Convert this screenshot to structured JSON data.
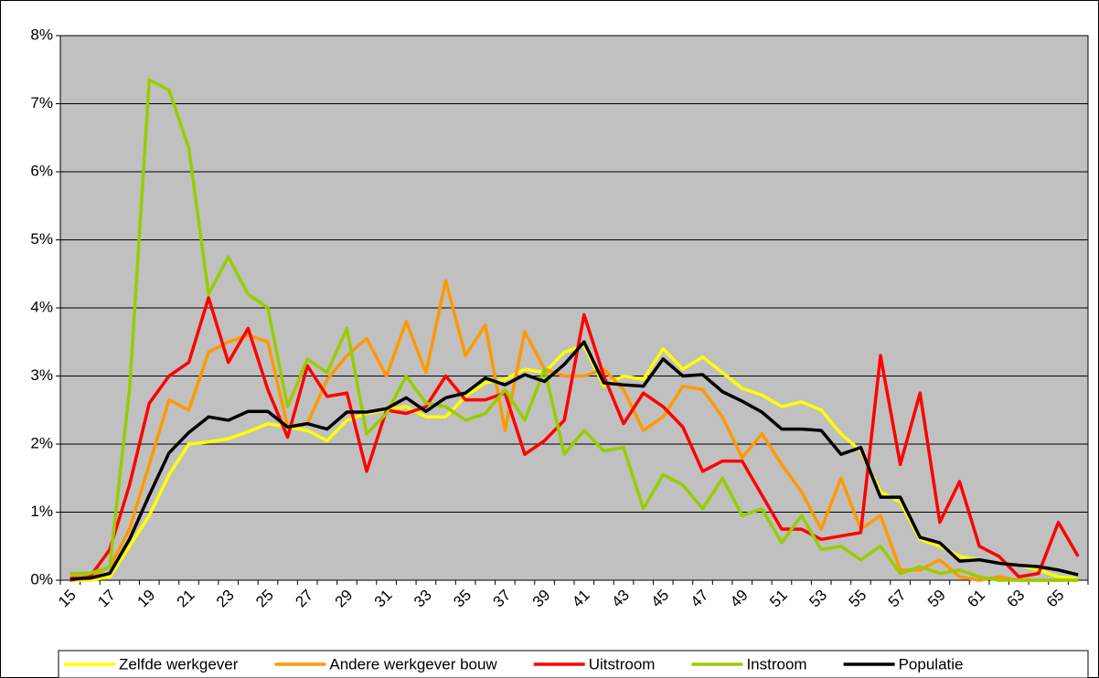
{
  "chart_data": {
    "type": "line",
    "categories": [
      "15",
      null,
      "17",
      null,
      "19",
      null,
      "21",
      null,
      "23",
      null,
      "25",
      null,
      "27",
      null,
      "29",
      null,
      "31",
      null,
      "33",
      null,
      "35",
      null,
      "37",
      null,
      "39",
      null,
      "41",
      null,
      "43",
      null,
      "45",
      null,
      "47",
      null,
      "49",
      null,
      "51",
      null,
      "53",
      null,
      "55",
      null,
      "57",
      null,
      "59",
      null,
      "61",
      null,
      "63",
      null,
      "65",
      null
    ],
    "series": [
      {
        "name": "Zelfde werkgever",
        "color": "#ffff00",
        "values": [
          0,
          0,
          0.05,
          0.5,
          0.95,
          1.55,
          2.0,
          2.03,
          2.08,
          2.18,
          2.3,
          2.25,
          2.2,
          2.05,
          2.35,
          2.45,
          2.5,
          2.55,
          2.4,
          2.4,
          2.7,
          2.9,
          2.95,
          3.1,
          3.05,
          3.35,
          3.45,
          2.85,
          3.0,
          2.95,
          3.4,
          3.1,
          3.28,
          3.05,
          2.82,
          2.72,
          2.55,
          2.62,
          2.5,
          2.15,
          1.9,
          1.3,
          1.15,
          0.6,
          0.5,
          0.35,
          0.3,
          0.25,
          0.22,
          0.15,
          0.05,
          0.02
        ]
      },
      {
        "name": "Andere werkgever bouw",
        "color": "#ff9900",
        "values": [
          0.05,
          0.05,
          0.2,
          0.75,
          1.7,
          2.65,
          2.5,
          3.35,
          3.5,
          3.6,
          3.5,
          2.25,
          2.3,
          2.95,
          3.3,
          3.55,
          3.0,
          3.8,
          3.05,
          4.4,
          3.3,
          3.75,
          2.2,
          3.65,
          3.1,
          3.0,
          3.0,
          3.1,
          2.8,
          2.2,
          2.4,
          2.85,
          2.8,
          2.4,
          1.8,
          2.15,
          1.7,
          1.3,
          0.75,
          1.5,
          0.75,
          0.95,
          0.15,
          0.15,
          0.3,
          0.05,
          0,
          0.05,
          0,
          0,
          0,
          0
        ]
      },
      {
        "name": "Uitstroom",
        "color": "#ff0000",
        "values": [
          0,
          0.05,
          0.45,
          1.4,
          2.6,
          3.0,
          3.2,
          4.15,
          3.2,
          3.7,
          2.8,
          2.1,
          3.15,
          2.7,
          2.75,
          1.6,
          2.5,
          2.45,
          2.55,
          3.0,
          2.65,
          2.65,
          2.75,
          1.85,
          2.05,
          2.35,
          3.9,
          3.0,
          2.3,
          2.75,
          2.55,
          2.25,
          1.6,
          1.75,
          1.75,
          1.25,
          0.75,
          0.75,
          0.6,
          0.65,
          0.7,
          3.3,
          1.7,
          2.75,
          0.85,
          1.45,
          0.5,
          0.35,
          0.05,
          0.1,
          0.85,
          0.35
        ]
      },
      {
        "name": "Instroom",
        "color": "#99cc00",
        "values": [
          0.1,
          0.1,
          0.2,
          2.8,
          7.35,
          7.2,
          6.35,
          4.2,
          4.75,
          4.2,
          4.0,
          2.55,
          3.25,
          3.05,
          3.7,
          2.15,
          2.45,
          3.0,
          2.6,
          2.55,
          2.35,
          2.45,
          2.8,
          2.35,
          3.1,
          1.85,
          2.2,
          1.9,
          1.95,
          1.05,
          1.55,
          1.4,
          1.05,
          1.5,
          0.95,
          1.05,
          0.55,
          0.95,
          0.45,
          0.5,
          0.3,
          0.5,
          0.1,
          0.2,
          0.1,
          0.15,
          0.05,
          0,
          0,
          0,
          0,
          0
        ]
      },
      {
        "name": "Populatie",
        "color": "#000000",
        "values": [
          0.02,
          0.03,
          0.1,
          0.6,
          1.25,
          1.87,
          2.17,
          2.4,
          2.35,
          2.48,
          2.48,
          2.25,
          2.3,
          2.22,
          2.47,
          2.47,
          2.52,
          2.68,
          2.48,
          2.68,
          2.75,
          2.97,
          2.87,
          3.02,
          2.92,
          3.17,
          3.5,
          2.9,
          2.87,
          2.85,
          3.25,
          3.0,
          3.02,
          2.77,
          2.63,
          2.47,
          2.22,
          2.22,
          2.2,
          1.85,
          1.95,
          1.22,
          1.22,
          0.63,
          0.55,
          0.28,
          0.3,
          0.25,
          0.22,
          0.2,
          0.15,
          0.08
        ]
      }
    ],
    "ylim": [
      0,
      8
    ],
    "yticks": [
      {
        "value": 0,
        "label": "0%"
      },
      {
        "value": 1,
        "label": "1%"
      },
      {
        "value": 2,
        "label": "2%"
      },
      {
        "value": 3,
        "label": "3%"
      },
      {
        "value": 4,
        "label": "4%"
      },
      {
        "value": 5,
        "label": "5%"
      },
      {
        "value": 6,
        "label": "6%"
      },
      {
        "value": 7,
        "label": "7%"
      },
      {
        "value": 8,
        "label": "8%"
      }
    ],
    "grid": true,
    "plot_background": "#c0c0c0",
    "legend": "bottom"
  }
}
